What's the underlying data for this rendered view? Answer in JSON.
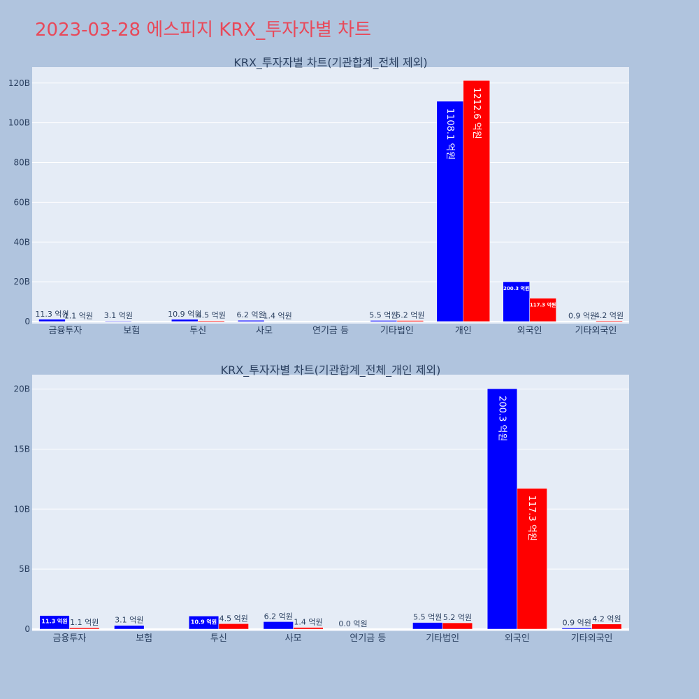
{
  "page": {
    "title": "2023-03-28 에스피지 KRX_투자자별 차트"
  },
  "colors": {
    "background": "#b0c4de",
    "plot_bg": "#e5ecf6",
    "series_1": "#0000ff",
    "series_2": "#ff0000",
    "title": "#e8495a",
    "text": "#2a3f5f"
  },
  "chart_data": [
    {
      "type": "bar",
      "title": "KRX_투자자별 차트(기관합계_전체 제외)",
      "categories": [
        "금융투자",
        "보험",
        "투신",
        "사모",
        "연기금 등",
        "기타법인",
        "개인",
        "외국인",
        "기타외국인"
      ],
      "series": [
        {
          "values": [
            11.3,
            3.1,
            10.9,
            6.2,
            0,
            5.5,
            1108.1,
            200.3,
            0.9
          ],
          "labels": [
            "11.3 억원",
            "3.1 억원",
            "10.9 억원",
            "6.2 억원",
            "",
            "5.5 억원",
            "1108.1 억원",
            "200.3 억원",
            "0.9 억원"
          ]
        },
        {
          "values": [
            1.1,
            0,
            4.5,
            1.4,
            0,
            5.2,
            1212.6,
            117.3,
            4.2
          ],
          "labels": [
            "1.1 억원",
            "",
            "4.5 억원",
            "1.4 억원",
            "",
            "5.2 억원",
            "1212.6 억원",
            "117.3 억원",
            "4.2 억원"
          ]
        }
      ],
      "yticks": [
        "0",
        "20B",
        "40B",
        "60B",
        "80B",
        "100B",
        "120B"
      ],
      "ytick_values": [
        0,
        200,
        400,
        600,
        800,
        1000,
        1200
      ],
      "ylim": [
        0,
        1280
      ],
      "grid": true,
      "legend": "none"
    },
    {
      "type": "bar",
      "title": "KRX_투자자별 차트(기관합계_전체_개인 제외)",
      "categories": [
        "금융투자",
        "보험",
        "투신",
        "사모",
        "연기금 등",
        "기타법인",
        "외국인",
        "기타외국인"
      ],
      "series": [
        {
          "values": [
            11.3,
            3.1,
            10.9,
            6.2,
            0.0,
            5.5,
            200.3,
            0.9
          ],
          "labels": [
            "11.3 억원",
            "3.1 억원",
            "10.9 억원",
            "6.2 억원",
            "0.0 억원",
            "5.5 억원",
            "200.3 억원",
            "0.9 억원"
          ]
        },
        {
          "values": [
            1.1,
            0,
            4.5,
            1.4,
            0,
            5.2,
            117.3,
            4.2
          ],
          "labels": [
            "1.1 억원",
            "",
            "4.5 억원",
            "1.4 억원",
            "",
            "5.2 억원",
            "117.3 억원",
            "4.2 억원"
          ]
        }
      ],
      "yticks": [
        "0",
        "5B",
        "10B",
        "15B",
        "20B"
      ],
      "ytick_values": [
        0,
        50,
        100,
        150,
        200
      ],
      "ylim": [
        0,
        212
      ],
      "grid": true,
      "legend": "none"
    }
  ]
}
